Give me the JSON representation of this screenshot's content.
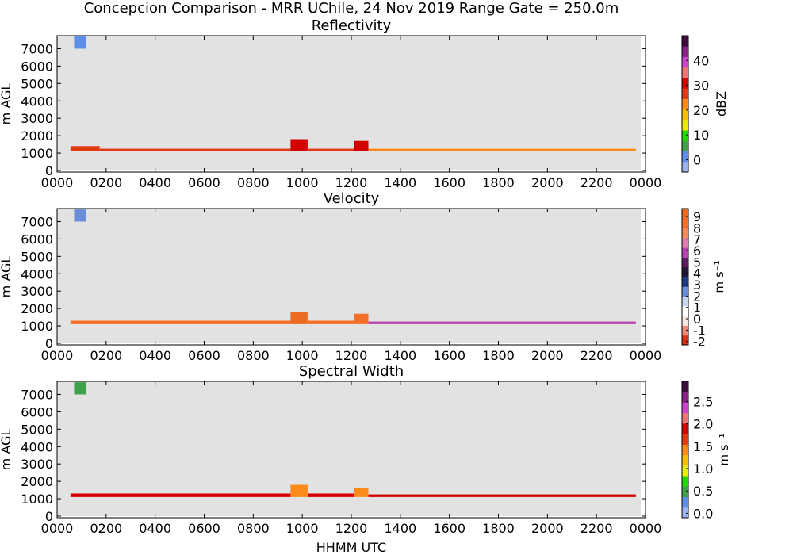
{
  "figure": {
    "title": "Concepcion Comparison - MRR UChile, 24 Nov 2019 Range Gate = 250.0m",
    "xlabel": "HHMM UTC"
  },
  "chart_data": [
    {
      "type": "heatmap",
      "title": "Reflectivity",
      "ylabel": "m AGL",
      "xlim": [
        0,
        24
      ],
      "ylim": [
        0,
        7750
      ],
      "xticks": [
        "0000",
        "0200",
        "0400",
        "0600",
        "0800",
        "1000",
        "1200",
        "1400",
        "1600",
        "1800",
        "2000",
        "2200",
        "0000"
      ],
      "yticks": [
        0,
        1000,
        2000,
        3000,
        4000,
        5000,
        6000,
        7000
      ],
      "colorbar": {
        "label": "dBZ",
        "range": [
          -5,
          50
        ],
        "ticks": [
          "0",
          "10",
          "20",
          "30",
          "40"
        ],
        "tick_values": [
          0,
          10,
          20,
          30,
          40
        ],
        "colors": [
          "#9cb4ee",
          "#5e8ee8",
          "#3fa24a",
          "#22d800",
          "#e8ec00",
          "#f6c000",
          "#fb8a1a",
          "#e13a12",
          "#d40000",
          "#ee7575",
          "#cc44cc",
          "#882288",
          "#3d0c3d"
        ]
      },
      "regions": [
        {
          "t0": 0.55,
          "t1": 1.75,
          "base": 1100,
          "top": 1400,
          "value": 26
        },
        {
          "t0": 1.75,
          "t1": 9.6,
          "base": 1100,
          "top": 1250,
          "value": 25
        },
        {
          "t0": 9.6,
          "t1": 10.3,
          "base": 1100,
          "top": 1800,
          "value": 30
        },
        {
          "t0": 10.3,
          "t1": 12.2,
          "base": 1100,
          "top": 1250,
          "value": 25
        },
        {
          "t0": 12.2,
          "t1": 12.8,
          "base": 1100,
          "top": 1700,
          "value": 30
        },
        {
          "t0": 12.8,
          "t1": 23.8,
          "base": 1100,
          "top": 1250,
          "value": 21
        },
        {
          "t0": 0.7,
          "t1": 1.2,
          "base": 7000,
          "top": 7700,
          "value": 2
        }
      ]
    },
    {
      "type": "heatmap",
      "title": "Velocity",
      "ylabel": "m s⁻¹",
      "ylabel_left": "m AGL",
      "xlim": [
        0,
        24
      ],
      "ylim": [
        0,
        7750
      ],
      "xticks": [
        "0000",
        "0200",
        "0400",
        "0600",
        "0800",
        "1000",
        "1200",
        "1400",
        "1600",
        "1800",
        "2000",
        "2200",
        "0000"
      ],
      "yticks": [
        0,
        1000,
        2000,
        3000,
        4000,
        5000,
        6000,
        7000
      ],
      "colorbar": {
        "label": "m s⁻¹",
        "range": [
          -2.3,
          9.7
        ],
        "ticks": [
          "-2",
          "-1",
          "0",
          "1",
          "2",
          "3",
          "4",
          "5",
          "6",
          "7",
          "8",
          "9"
        ],
        "tick_values": [
          -2,
          -1,
          0,
          1,
          2,
          3,
          4,
          5,
          6,
          7,
          8,
          9
        ],
        "colors": [
          "#d8321a",
          "#ee8a78",
          "#f8e6e0",
          "#ffffff",
          "#c8d6f0",
          "#6a8ed8",
          "#223a82",
          "#231838",
          "#5a1e5e",
          "#b842b0",
          "#e07ab0",
          "#f28a5a",
          "#f47028",
          "#ec6a22"
        ]
      },
      "regions": [
        {
          "t0": 0.55,
          "t1": 9.6,
          "base": 1100,
          "top": 1300,
          "value": 8.0
        },
        {
          "t0": 9.6,
          "t1": 10.3,
          "base": 1100,
          "top": 1800,
          "value": 9.0
        },
        {
          "t0": 10.3,
          "t1": 12.2,
          "base": 1100,
          "top": 1300,
          "value": 8.0
        },
        {
          "t0": 12.2,
          "t1": 12.8,
          "base": 1100,
          "top": 1700,
          "value": 8.5
        },
        {
          "t0": 12.8,
          "t1": 23.8,
          "base": 1100,
          "top": 1250,
          "value": 6.2
        },
        {
          "t0": 0.7,
          "t1": 1.2,
          "base": 7000,
          "top": 7700,
          "value": 2
        }
      ]
    },
    {
      "type": "heatmap",
      "title": "Spectral Width",
      "ylabel": "m s⁻¹",
      "ylabel_left": "m AGL",
      "xlim": [
        0,
        24
      ],
      "ylim": [
        0,
        7750
      ],
      "xticks": [
        "0000",
        "0200",
        "0400",
        "0600",
        "0800",
        "1000",
        "1200",
        "1400",
        "1600",
        "1800",
        "2000",
        "2200",
        "0000"
      ],
      "yticks": [
        0,
        1000,
        2000,
        3000,
        4000,
        5000,
        6000,
        7000
      ],
      "colorbar": {
        "label": "m s⁻¹",
        "range": [
          -0.1,
          2.95
        ],
        "ticks": [
          "0.0",
          "0.5",
          "1.0",
          "1.5",
          "2.0",
          "2.5"
        ],
        "tick_values": [
          0,
          0.5,
          1.0,
          1.5,
          2.0,
          2.5
        ],
        "colors": [
          "#9cb4ee",
          "#5e8ee8",
          "#3fa24a",
          "#22d800",
          "#e8ec00",
          "#f6c000",
          "#fb8a1a",
          "#e13a12",
          "#d40000",
          "#ee7575",
          "#cc44cc",
          "#882288",
          "#3d0c3d"
        ]
      },
      "regions": [
        {
          "t0": 0.55,
          "t1": 9.6,
          "base": 1100,
          "top": 1300,
          "value": 1.9
        },
        {
          "t0": 9.6,
          "t1": 10.3,
          "base": 1100,
          "top": 1800,
          "value": 1.4
        },
        {
          "t0": 10.3,
          "t1": 12.2,
          "base": 1100,
          "top": 1300,
          "value": 1.9
        },
        {
          "t0": 12.2,
          "t1": 12.8,
          "base": 1100,
          "top": 1600,
          "value": 1.5
        },
        {
          "t0": 12.8,
          "t1": 23.8,
          "base": 1100,
          "top": 1250,
          "value": 1.9
        },
        {
          "t0": 0.7,
          "t1": 1.2,
          "base": 7000,
          "top": 7700,
          "value": 0.4
        }
      ]
    }
  ]
}
